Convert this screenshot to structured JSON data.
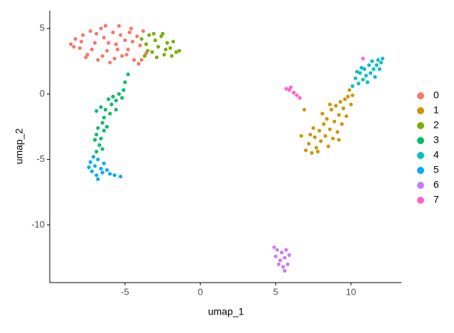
{
  "chart_data": {
    "type": "scatter",
    "x_label": "umap_1",
    "y_label": "umap_2",
    "xlim": [
      -10,
      13.35
    ],
    "ylim": [
      -14.4,
      6.36
    ],
    "xticks": [
      -5,
      0,
      5,
      10
    ],
    "yticks": [
      5,
      0,
      -5,
      -10
    ],
    "legend": "right",
    "series": [
      {
        "name": "0",
        "color": "#F8766D",
        "x": [
          -8.6,
          -8.3,
          -8.0,
          -7.8,
          -7.5,
          -7.3,
          -7.0,
          -6.8,
          -6.6,
          -6.4,
          -6.2,
          -6.0,
          -5.8,
          -5.6,
          -5.4,
          -5.2,
          -5.0,
          -4.8,
          -4.6,
          -4.4,
          -4.2,
          -4.0,
          -3.8,
          -3.6,
          -7.9,
          -7.2,
          -6.9,
          -6.5,
          -6.1,
          -5.7,
          -5.3,
          -4.9,
          -4.5,
          -4.1,
          -8.4,
          -7.6,
          -6.3,
          -5.5,
          -4.7,
          -3.9
        ],
        "y": [
          3.8,
          4.2,
          3.5,
          4.5,
          3.0,
          4.8,
          3.9,
          2.6,
          5.0,
          4.3,
          3.3,
          2.4,
          4.7,
          3.8,
          5.2,
          2.9,
          4.1,
          3.4,
          5.0,
          2.6,
          4.4,
          3.7,
          4.8,
          3.1,
          4.0,
          3.4,
          4.6,
          2.9,
          3.9,
          2.7,
          4.5,
          3.0,
          4.0,
          2.3,
          3.6,
          2.8,
          5.2,
          3.4,
          4.7,
          2.6
        ]
      },
      {
        "name": "1",
        "color": "#CD9600",
        "x": [
          7.0,
          7.2,
          7.4,
          7.6,
          7.7,
          7.9,
          8.0,
          8.2,
          8.3,
          8.4,
          8.5,
          8.6,
          8.7,
          8.8,
          8.9,
          9.0,
          9.1,
          9.2,
          9.3,
          9.4,
          9.5,
          9.6,
          9.7,
          9.8,
          9.9,
          10.0,
          10.1,
          7.5,
          8.1,
          7.3,
          8.6,
          9.2,
          7.8,
          6.9,
          6.7
        ],
        "y": [
          -4.3,
          -3.8,
          -4.5,
          -3.3,
          -4.1,
          -2.8,
          -3.6,
          -2.3,
          -3.2,
          -1.9,
          -4.0,
          -2.7,
          -1.2,
          -3.4,
          -2.1,
          -0.9,
          -2.9,
          -1.6,
          -0.6,
          -2.3,
          -1.1,
          -0.4,
          -1.7,
          -0.2,
          0.3,
          -0.8,
          -0.1,
          -2.6,
          -1.5,
          -3.1,
          -0.8,
          -3.5,
          -4.4,
          -1.2,
          -3.2
        ]
      },
      {
        "name": "2",
        "color": "#7CAE00",
        "x": [
          -3.9,
          -3.6,
          -3.4,
          -3.2,
          -3.0,
          -2.8,
          -2.6,
          -2.4,
          -2.2,
          -2.0,
          -1.8,
          -1.6,
          -1.4,
          -2.9,
          -3.5,
          -2.5,
          -1.9,
          -3.1,
          -2.3,
          -3.7
        ],
        "y": [
          4.2,
          3.8,
          4.5,
          3.2,
          4.1,
          3.6,
          4.4,
          3.0,
          3.9,
          3.5,
          4.0,
          3.2,
          3.3,
          2.8,
          3.3,
          4.6,
          2.9,
          4.6,
          3.4,
          2.9
        ]
      },
      {
        "name": "3",
        "color": "#00BE67",
        "x": [
          -4.8,
          -5.0,
          -5.1,
          -5.4,
          -5.6,
          -5.2,
          -5.9,
          -6.1,
          -6.3,
          -6.6,
          -6.9,
          -6.4,
          -6.0,
          -6.5,
          -6.8,
          -6.4,
          -6.9,
          -6.6,
          -7.0,
          -6.7,
          -6.9,
          -6.5,
          -5.6,
          -6.2,
          -5.8
        ],
        "y": [
          1.5,
          0.9,
          0.3,
          0.0,
          -0.5,
          -0.3,
          -0.8,
          -0.4,
          -1.2,
          -1.0,
          -1.3,
          -1.8,
          -1.5,
          -2.2,
          -2.6,
          -2.8,
          -3.1,
          -3.4,
          -3.5,
          -3.9,
          -4.4,
          -4.2,
          -1.2,
          -2.5,
          -0.2
        ]
      },
      {
        "name": "4",
        "color": "#00BFC4",
        "x": [
          10.1,
          10.3,
          10.5,
          10.6,
          10.8,
          10.9,
          11.0,
          11.2,
          11.3,
          11.4,
          11.5,
          11.6,
          11.7,
          11.8,
          11.9,
          12.0,
          12.1,
          10.7,
          11.1,
          10.4
        ],
        "y": [
          0.6,
          1.2,
          0.8,
          1.6,
          1.1,
          1.9,
          1.4,
          2.2,
          1.6,
          2.5,
          1.9,
          1.3,
          2.2,
          2.6,
          1.9,
          2.4,
          2.7,
          2.0,
          0.9,
          1.7
        ]
      },
      {
        "name": "5",
        "color": "#00A9FF",
        "x": [
          -7.3,
          -7.0,
          -6.8,
          -6.6,
          -7.2,
          -6.9,
          -6.5,
          -6.2,
          -6.0,
          -5.7,
          -5.3,
          -6.8,
          -7.4,
          -6.4,
          -7.1
        ],
        "y": [
          -5.2,
          -5.5,
          -5.0,
          -5.7,
          -5.9,
          -6.2,
          -6.0,
          -5.8,
          -6.1,
          -6.2,
          -6.3,
          -6.5,
          -5.6,
          -5.3,
          -4.8
        ]
      },
      {
        "name": "6",
        "color": "#C77CFF",
        "x": [
          4.9,
          5.1,
          5.4,
          5.7,
          5.0,
          5.3,
          5.6,
          5.9,
          5.2,
          5.5,
          5.8,
          5.6
        ],
        "y": [
          -11.7,
          -11.9,
          -12.1,
          -11.9,
          -12.4,
          -12.7,
          -12.5,
          -12.3,
          -13.0,
          -13.2,
          -13.0,
          -13.5
        ]
      },
      {
        "name": "7",
        "color": "#FF61CC",
        "x": [
          5.7,
          5.9,
          6.0,
          6.2,
          6.4,
          6.6,
          10.8
        ],
        "y": [
          0.4,
          0.3,
          0.5,
          0.1,
          -0.1,
          -0.3,
          2.7
        ]
      }
    ]
  }
}
